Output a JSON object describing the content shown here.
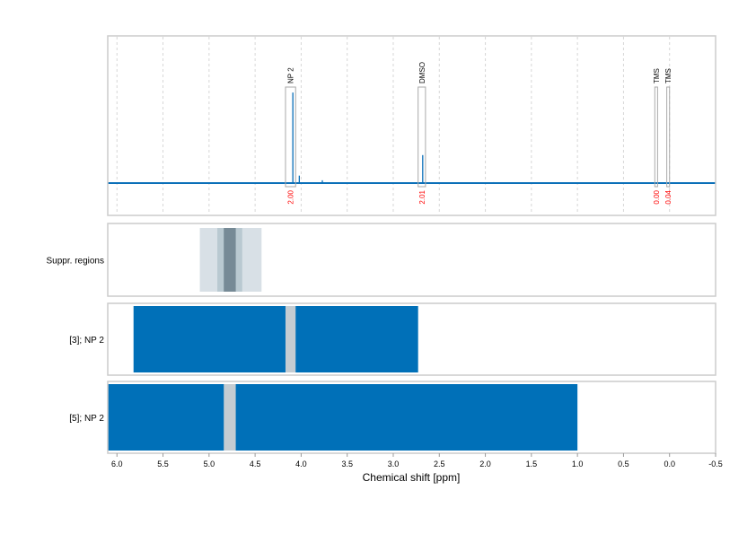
{
  "chart_data": {
    "type": "nmr-spectrum",
    "xlabel": "Chemical shift [ppm]",
    "xlim": [
      6.1,
      -0.5
    ],
    "x_ticks": [
      "6.0",
      "5.5",
      "5.0",
      "4.5",
      "4.0",
      "3.5",
      "3.0",
      "2.5",
      "2.0",
      "1.5",
      "1.0",
      "0.5",
      "0.0",
      "-0.5"
    ],
    "grid": "vertical dashed",
    "colors": {
      "spectrum": "#0a6fb8",
      "region": "#0070b8",
      "gap": "#c4ccd2",
      "integral": "#ff0000",
      "box": "#aaaaaa"
    },
    "spectrum_peaks": [
      {
        "ppm": 4.09,
        "height": 0.97
      },
      {
        "ppm": 4.02,
        "height": 0.08
      },
      {
        "ppm": 3.77,
        "height": 0.03
      },
      {
        "ppm": 2.68,
        "height": 0.3
      },
      {
        "ppm": 1.91,
        "height": 0.01
      }
    ],
    "annotations": [
      {
        "label": "NP 2",
        "from": 4.17,
        "to": 4.06,
        "integral": "2.00"
      },
      {
        "label": "DMSO",
        "from": 2.73,
        "to": 2.65,
        "integral": "2.01"
      },
      {
        "label": "TMS",
        "from": 0.16,
        "to": 0.13,
        "integral": "0.00"
      },
      {
        "label": "TMS",
        "from": 0.03,
        "to": 0.0,
        "integral": "0.04"
      }
    ],
    "tracks": [
      {
        "label": "Suppr. regions",
        "bands": [
          {
            "from": 5.1,
            "to": 4.43,
            "color": "#d8e0e6"
          },
          {
            "from": 4.91,
            "to": 4.64,
            "color": "#b9c9d1"
          },
          {
            "from": 4.84,
            "to": 4.71,
            "color": "#768a96"
          }
        ]
      },
      {
        "label": "[3]; NP 2",
        "bands": [
          {
            "from": 5.82,
            "to": 2.73,
            "color": "#0070b8"
          },
          {
            "from": 4.17,
            "to": 4.06,
            "color": "#c4ccd2"
          }
        ]
      },
      {
        "label": "[5]; NP 2",
        "bands": [
          {
            "from": 6.1,
            "to": 1.0,
            "color": "#0070b8"
          },
          {
            "from": 4.84,
            "to": 4.71,
            "color": "#c4ccd2"
          }
        ]
      }
    ]
  }
}
